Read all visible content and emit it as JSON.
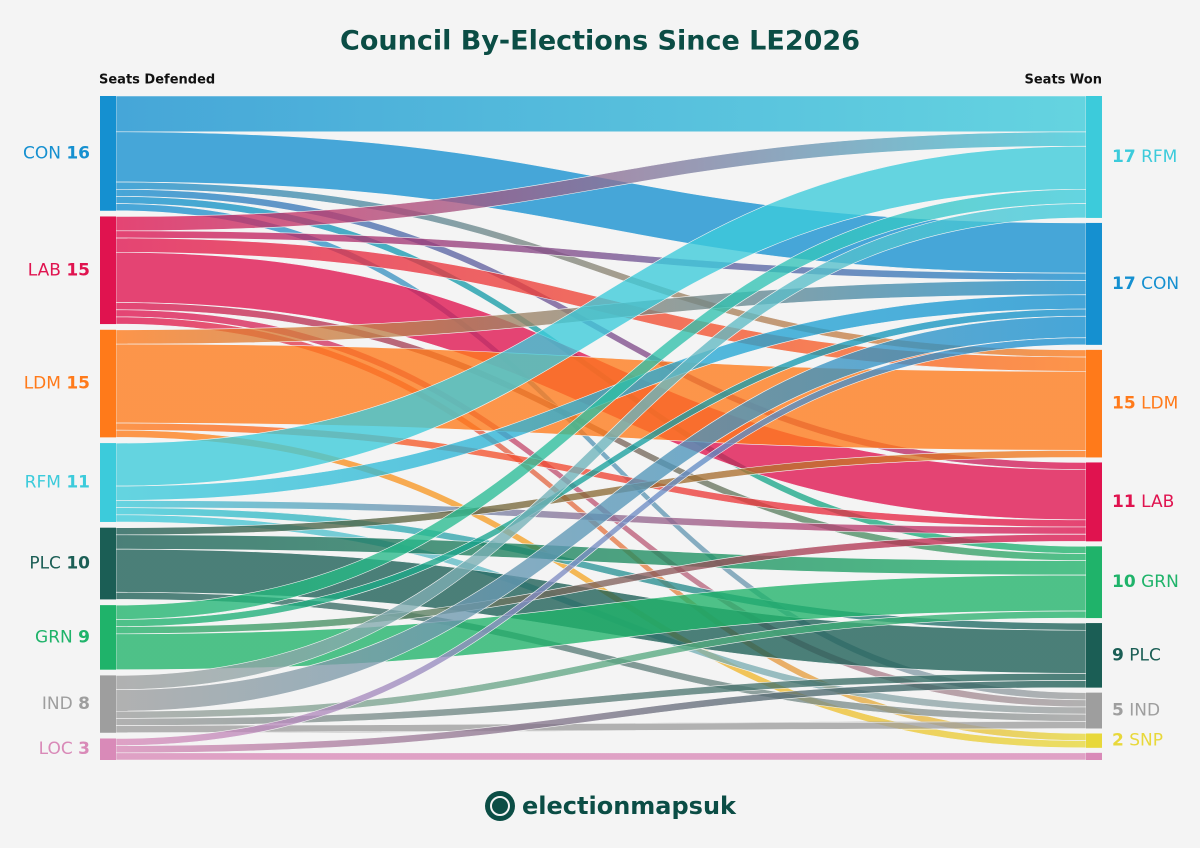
{
  "chart_data": {
    "type": "sankey",
    "title": "Council By-Elections Since LE2026",
    "left_label": "Seats Defended",
    "right_label": "Seats Won",
    "footer": "electionmapsuk",
    "left_nodes": [
      {
        "name": "CON",
        "value": 16,
        "color": "#1590d0",
        "flows": [
          {
            "to": "RFM",
            "value": 5
          },
          {
            "to": "CON",
            "value": 7
          },
          {
            "to": "LDM",
            "value": 1
          },
          {
            "to": "LAB",
            "value": 1
          },
          {
            "to": "GRN",
            "value": 1
          },
          {
            "to": "IND",
            "value": 1
          }
        ]
      },
      {
        "name": "LAB",
        "value": 15,
        "color": "#e0134f",
        "flows": [
          {
            "to": "RFM",
            "value": 2
          },
          {
            "to": "CON",
            "value": 1
          },
          {
            "to": "LDM",
            "value": 2
          },
          {
            "to": "LAB",
            "value": 7
          },
          {
            "to": "GRN",
            "value": 1
          },
          {
            "to": "IND",
            "value": 1
          },
          {
            "to": "SNP",
            "value": 1
          }
        ]
      },
      {
        "name": "LDM",
        "value": 15,
        "color": "#ff7a1a",
        "flows": [
          {
            "to": "CON",
            "value": 2
          },
          {
            "to": "LDM",
            "value": 11
          },
          {
            "to": "LAB",
            "value": 1
          },
          {
            "to": "SNP",
            "value": 1
          }
        ]
      },
      {
        "name": "RFM",
        "value": 11,
        "color": "#3ccbdb",
        "flows": [
          {
            "to": "RFM",
            "value": 6
          },
          {
            "to": "CON",
            "value": 2
          },
          {
            "to": "LAB",
            "value": 1
          },
          {
            "to": "PLC",
            "value": 1
          },
          {
            "to": "IND",
            "value": 1
          }
        ]
      },
      {
        "name": "PLC",
        "value": 10,
        "color": "#1b5e55",
        "flows": [
          {
            "to": "LDM",
            "value": 1
          },
          {
            "to": "GRN",
            "value": 2
          },
          {
            "to": "PLC",
            "value": 6
          },
          {
            "to": "IND",
            "value": 1
          }
        ]
      },
      {
        "name": "GRN",
        "value": 9,
        "color": "#1fb36a",
        "flows": [
          {
            "to": "RFM",
            "value": 2
          },
          {
            "to": "CON",
            "value": 1
          },
          {
            "to": "LAB",
            "value": 1
          },
          {
            "to": "GRN",
            "value": 5
          }
        ]
      },
      {
        "name": "IND",
        "value": 8,
        "color": "#9e9e9e",
        "flows": [
          {
            "to": "RFM",
            "value": 2
          },
          {
            "to": "CON",
            "value": 3
          },
          {
            "to": "GRN",
            "value": 1
          },
          {
            "to": "PLC",
            "value": 1
          },
          {
            "to": "IND",
            "value": 1
          }
        ]
      },
      {
        "name": "LOC",
        "value": 3,
        "color": "#d98ab8",
        "flows": [
          {
            "to": "CON",
            "value": 1
          },
          {
            "to": "PLC",
            "value": 1
          },
          {
            "to": null,
            "value": 1
          }
        ]
      }
    ],
    "right_nodes": [
      {
        "name": "RFM",
        "value": 17,
        "color": "#3ccbdb"
      },
      {
        "name": "CON",
        "value": 17,
        "color": "#1590d0"
      },
      {
        "name": "LDM",
        "value": 15,
        "color": "#ff7a1a"
      },
      {
        "name": "LAB",
        "value": 11,
        "color": "#e0134f"
      },
      {
        "name": "GRN",
        "value": 10,
        "color": "#1fb36a"
      },
      {
        "name": "PLC",
        "value": 9,
        "color": "#1b5e55"
      },
      {
        "name": "IND",
        "value": 5,
        "color": "#9e9e9e"
      },
      {
        "name": "SNP",
        "value": 2,
        "color": "#e8d83a"
      },
      {
        "name": null,
        "value": 1,
        "color": "#d98ab8"
      }
    ]
  }
}
